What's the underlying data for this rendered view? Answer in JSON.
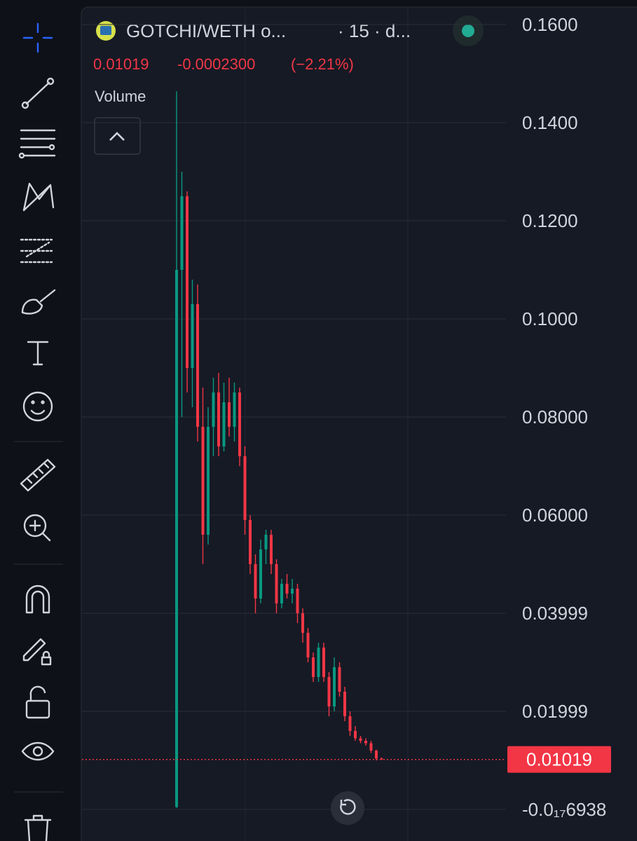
{
  "header": {
    "symbol": "GOTCHI/WETH o...",
    "interval": "· 15 · d...",
    "change": "-0.0002300",
    "change_pct": "(−2.21%)",
    "volume": "Volume"
  },
  "chart_data": {
    "type": "candlestick",
    "up_color": "#089981",
    "down_color": "#f23645",
    "last_price": 0.01019,
    "ylim": [
      -0.00643,
      0.165
    ],
    "yticks": [
      {
        "value": 0.16,
        "label": "0.1600"
      },
      {
        "value": 0.14,
        "label": "0.1400"
      },
      {
        "value": 0.12,
        "label": "0.1200"
      },
      {
        "value": 0.1,
        "label": "0.1000"
      },
      {
        "value": 0.08,
        "label": "0.08000"
      },
      {
        "value": 0.06,
        "label": "0.06000"
      },
      0.03999,
      0.01999,
      {
        "value": -6.938e-18,
        "label": "-0.0₁₇6938"
      }
    ],
    "grid": true,
    "open": [
      0.0005,
      0.11,
      0.125,
      0.09,
      0.103,
      0.078,
      0.056,
      0.078,
      0.085,
      0.074,
      0.083,
      0.078,
      0.085,
      0.072,
      0.059,
      0.05,
      0.043,
      0.053,
      0.056,
      0.05,
      0.042,
      0.046,
      0.044,
      0.045,
      0.04,
      0.036,
      0.031,
      0.027,
      0.033,
      0.027,
      0.021,
      0.029,
      0.024,
      0.019,
      0.016,
      0.0145,
      0.014,
      0.0135,
      0.012,
      0.0104
    ],
    "high": [
      0.1464,
      0.13,
      0.126,
      0.108,
      0.107,
      0.086,
      0.082,
      0.088,
      0.089,
      0.087,
      0.088,
      0.087,
      0.086,
      0.074,
      0.06,
      0.052,
      0.055,
      0.057,
      0.057,
      0.051,
      0.047,
      0.048,
      0.047,
      0.046,
      0.041,
      0.037,
      0.032,
      0.034,
      0.034,
      0.028,
      0.031,
      0.03,
      0.025,
      0.02,
      0.017,
      0.015,
      0.0145,
      0.014,
      0.0122,
      0.0106
    ],
    "low": [
      0.0003,
      0.08,
      0.085,
      0.082,
      0.075,
      0.05,
      0.054,
      0.072,
      0.072,
      0.073,
      0.076,
      0.075,
      0.07,
      0.056,
      0.048,
      0.04,
      0.042,
      0.05,
      0.048,
      0.04,
      0.041,
      0.043,
      0.042,
      0.038,
      0.034,
      0.03,
      0.026,
      0.026,
      0.026,
      0.019,
      0.02,
      0.023,
      0.018,
      0.015,
      0.014,
      0.0135,
      0.013,
      0.0115,
      0.01,
      0.0101
    ],
    "close": [
      0.11,
      0.125,
      0.09,
      0.103,
      0.078,
      0.056,
      0.078,
      0.085,
      0.074,
      0.083,
      0.078,
      0.085,
      0.072,
      0.059,
      0.05,
      0.043,
      0.053,
      0.056,
      0.05,
      0.042,
      0.046,
      0.044,
      0.045,
      0.04,
      0.036,
      0.031,
      0.027,
      0.033,
      0.027,
      0.021,
      0.029,
      0.024,
      0.019,
      0.016,
      0.0145,
      0.014,
      0.0135,
      0.012,
      0.0104,
      0.0102
    ]
  }
}
